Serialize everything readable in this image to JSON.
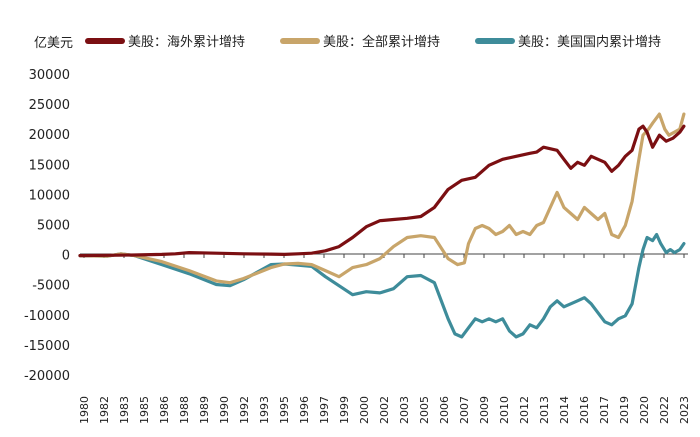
{
  "chart_data": {
    "type": "line",
    "title": "",
    "ylabel": "亿美元",
    "xlabel": "",
    "ylim": [
      -20000,
      30000
    ],
    "xlim": [
      1980,
      2024.6
    ],
    "y_ticks": [
      -20000,
      -15000,
      -10000,
      -5000,
      0,
      5000,
      10000,
      15000,
      20000,
      25000,
      30000
    ],
    "x_tick_labels": [
      "1980",
      "1982",
      "1983",
      "1985",
      "1986",
      "1988",
      "1989",
      "1990",
      "1992",
      "1993",
      "1995",
      "1996",
      "1997",
      "1999",
      "2000",
      "2002",
      "2003",
      "2005",
      "2006",
      "2007",
      "2009",
      "2010",
      "2012",
      "2013",
      "2014",
      "2016",
      "2017",
      "2019",
      "2020",
      "2022",
      "2023"
    ],
    "legend": "top",
    "series": [
      {
        "name": "美股：海外累计增持",
        "color": "#7B0F12",
        "x": [
          1980,
          1982,
          1984,
          1986,
          1987,
          1988,
          1990,
          1992,
          1994,
          1995,
          1996,
          1997,
          1998,
          1999,
          2000,
          2001,
          2002,
          2003,
          2004,
          2005,
          2006,
          2007,
          2008,
          2009,
          2010,
          2011,
          2012,
          2013,
          2013.5,
          2014,
          2015,
          2015.5,
          2016,
          2016.5,
          2017,
          2017.5,
          2018,
          2018.5,
          2019,
          2019.5,
          2020,
          2020.5,
          2021,
          2021.3,
          2021.6,
          2022,
          2022.5,
          2023,
          2023.5,
          2024,
          2024.3
        ],
        "values": [
          0,
          50,
          100,
          200,
          300,
          500,
          400,
          300,
          250,
          200,
          300,
          400,
          800,
          1500,
          3000,
          4800,
          5800,
          6000,
          6200,
          6500,
          8000,
          11000,
          12500,
          13000,
          15000,
          16000,
          16500,
          17000,
          17200,
          18000,
          17500,
          16000,
          14500,
          15500,
          15000,
          16500,
          16000,
          15500,
          14000,
          15000,
          16500,
          17500,
          21000,
          21500,
          20500,
          18000,
          20000,
          19000,
          19500,
          20500,
          21500
        ]
      },
      {
        "name": "美股：全部累计增持",
        "color": "#C8A56A",
        "x": [
          1980,
          1982,
          1983,
          1984,
          1986,
          1988,
          1990,
          1991,
          1992,
          1994,
          1995,
          1996,
          1997,
          1998,
          1999,
          2000,
          2001,
          2002,
          2003,
          2004,
          2005,
          2006,
          2007,
          2007.7,
          2008.2,
          2008.5,
          2009,
          2009.5,
          2010,
          2010.5,
          2011,
          2011.5,
          2012,
          2012.5,
          2013,
          2013.5,
          2014,
          2014.5,
          2015,
          2015.5,
          2016,
          2016.5,
          2017,
          2017.5,
          2018,
          2018.5,
          2019,
          2019.5,
          2020,
          2020.5,
          2021,
          2021.3,
          2021.7,
          2022,
          2022.5,
          2022.9,
          2023.2,
          2023.6,
          2024,
          2024.3
        ],
        "values": [
          0,
          -100,
          300,
          0,
          -1000,
          -2500,
          -4200,
          -4500,
          -3800,
          -2000,
          -1400,
          -1300,
          -1500,
          -2500,
          -3500,
          -2000,
          -1500,
          -500,
          1500,
          3000,
          3300,
          3000,
          -500,
          -1500,
          -1200,
          2000,
          4500,
          5000,
          4500,
          3500,
          4000,
          5000,
          3500,
          4000,
          3500,
          5000,
          5500,
          8000,
          10500,
          8000,
          7000,
          6000,
          8000,
          7000,
          6000,
          7000,
          3500,
          3000,
          5000,
          9000,
          16000,
          20000,
          21000,
          22000,
          23500,
          21000,
          20000,
          20500,
          21000,
          23500
        ]
      },
      {
        "name": "美股：美国国内累计增持",
        "color": "#3E8C9A",
        "x": [
          1980,
          1982,
          1983,
          1984,
          1986,
          1988,
          1990,
          1991,
          1992,
          1994,
          1995,
          1996,
          1997,
          1998,
          1999,
          2000,
          2001,
          2002,
          2003,
          2004,
          2005,
          2006,
          2007,
          2007.5,
          2008,
          2008.5,
          2009,
          2009.5,
          2010,
          2010.5,
          2011,
          2011.5,
          2012,
          2012.5,
          2013,
          2013.5,
          2014,
          2014.5,
          2015,
          2015.5,
          2016,
          2016.5,
          2017,
          2017.5,
          2018,
          2018.5,
          2019,
          2019.5,
          2020,
          2020.5,
          2021,
          2021.3,
          2021.6,
          2022,
          2022.3,
          2022.6,
          2023,
          2023.3,
          2023.6,
          2024,
          2024.3
        ],
        "values": [
          0,
          -100,
          300,
          0,
          -1500,
          -3000,
          -4800,
          -5000,
          -4000,
          -1500,
          -1400,
          -1600,
          -1800,
          -3500,
          -5000,
          -6500,
          -6000,
          -6200,
          -5500,
          -3500,
          -3300,
          -4500,
          -10500,
          -13000,
          -13500,
          -12000,
          -10500,
          -11000,
          -10500,
          -11000,
          -10500,
          -12500,
          -13500,
          -13000,
          -11500,
          -12000,
          -10500,
          -8500,
          -7500,
          -8500,
          -8000,
          -7500,
          -7000,
          -8000,
          -9500,
          -11000,
          -11500,
          -10500,
          -10000,
          -8000,
          -2000,
          1000,
          3000,
          2500,
          3500,
          2000,
          500,
          1000,
          500,
          1000,
          2000
        ]
      }
    ]
  }
}
